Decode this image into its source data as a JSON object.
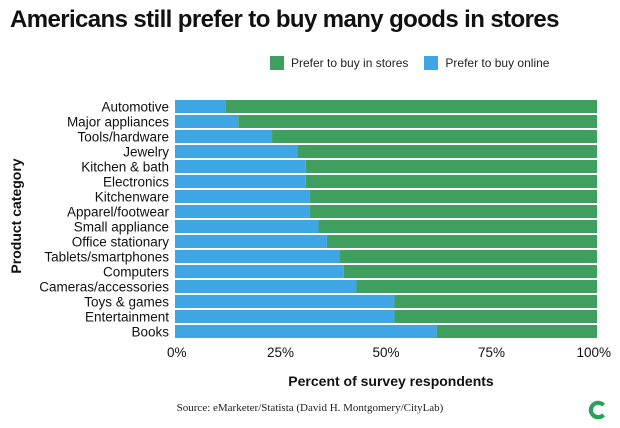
{
  "title": "Americans still prefer to buy many goods in stores",
  "source": "Source: eMarketer/Statista (David H. Montgomery/CityLab)",
  "logo_icon": "citylab-logo-icon",
  "colors": {
    "stores": "#3f9f5f",
    "online": "#3fa6e6",
    "logo": "#2aa15a"
  },
  "chart_data": {
    "type": "bar",
    "orientation": "horizontal",
    "stacked": true,
    "title": "Americans still prefer to buy many goods in stores",
    "xlabel": "Percent of survey respondents",
    "ylabel": "Product category",
    "xlim": [
      0,
      100
    ],
    "xticks": [
      0,
      25,
      50,
      75,
      100
    ],
    "xtick_labels": [
      "0%",
      "25%",
      "50%",
      "75%",
      "100%"
    ],
    "legend_position": "top-right",
    "categories": [
      "Automotive",
      "Major appliances",
      "Tools/hardware",
      "Jewelry",
      "Kitchen & bath",
      "Electronics",
      "Kitchenware",
      "Apparel/footwear",
      "Small appliance",
      "Office stationary",
      "Tablets/smartphones",
      "Computers",
      "Cameras/accessories",
      "Toys & games",
      "Entertainment",
      "Books"
    ],
    "series": [
      {
        "name": "Prefer to buy online",
        "values": [
          12,
          15,
          23,
          29,
          31,
          31,
          32,
          32,
          34,
          36,
          39,
          40,
          43,
          52,
          52,
          62
        ]
      },
      {
        "name": "Prefer to buy in stores",
        "values": [
          88,
          85,
          77,
          71,
          69,
          69,
          68,
          68,
          66,
          64,
          61,
          60,
          57,
          48,
          48,
          38
        ]
      }
    ],
    "legend": [
      "Prefer to buy in stores",
      "Prefer to buy online"
    ]
  }
}
